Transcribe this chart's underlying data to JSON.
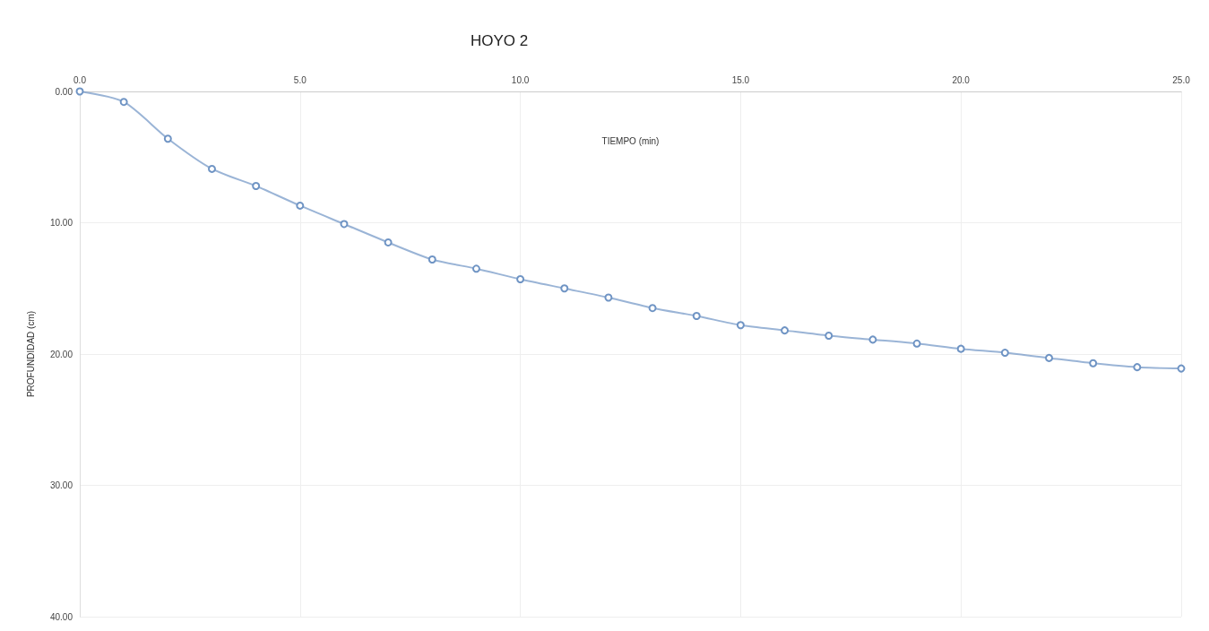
{
  "chart_data": {
    "type": "line",
    "title": "HOYO 2",
    "xlabel": "TIEMPO (min)",
    "ylabel": "PROFUNDIDAD (cm)",
    "x": [
      0,
      1,
      2,
      3,
      4,
      5,
      6,
      7,
      8,
      9,
      10,
      11,
      12,
      13,
      14,
      15,
      16,
      17,
      18,
      19,
      20,
      21,
      22,
      23,
      24,
      25
    ],
    "series": [
      {
        "color": "#6f94c4",
        "values": [
          0,
          0.8,
          3.6,
          5.9,
          7.2,
          8.7,
          10.1,
          11.5,
          12.8,
          13.5,
          14.3,
          15.0,
          15.7,
          16.5,
          17.1,
          17.8,
          18.2,
          18.6,
          18.9,
          19.2,
          19.6,
          19.9,
          20.3,
          20.7,
          21.0,
          21.1
        ]
      }
    ],
    "xlim": [
      0,
      25
    ],
    "xticks": [
      {
        "value": 0,
        "label": "0.0"
      },
      {
        "value": 5,
        "label": "5.0"
      },
      {
        "value": 10,
        "label": "10.0"
      },
      {
        "value": 15,
        "label": "15.0"
      },
      {
        "value": 20,
        "label": "20.0"
      },
      {
        "value": 25,
        "label": "25.0"
      }
    ],
    "ylim": [
      40,
      0
    ],
    "yticks": [
      {
        "value": 0,
        "label": "0.00"
      },
      {
        "value": 10,
        "label": "10.00"
      },
      {
        "value": 20,
        "label": "20.00"
      },
      {
        "value": 30,
        "label": "30.00"
      },
      {
        "value": 40,
        "label": "40.00"
      }
    ],
    "grid": true,
    "marker": "circle",
    "line_style": "solid"
  }
}
